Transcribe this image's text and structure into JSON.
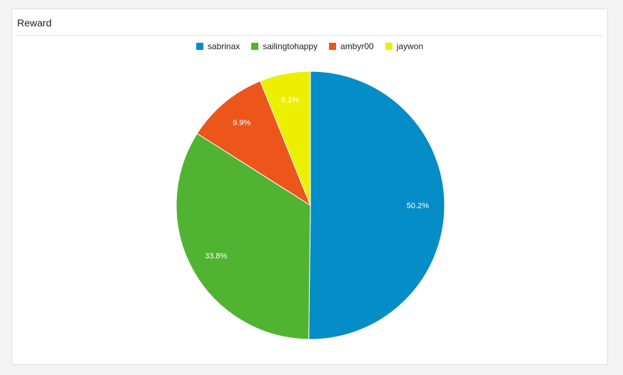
{
  "chart_data": {
    "type": "pie",
    "title": "Reward",
    "legend_position": "top",
    "slices": [
      {
        "label": "sabrinax",
        "value": 50.2,
        "value_label": "50.2%",
        "color": "#058dc7"
      },
      {
        "label": "sailingtohappy",
        "value": 33.8,
        "value_label": "33.8%",
        "color": "#50b432"
      },
      {
        "label": "ambyr00",
        "value": 9.9,
        "value_label": "9.9%",
        "color": "#ed561b"
      },
      {
        "label": "jaywon",
        "value": 6.1,
        "value_label": "6.1%",
        "color": "#edef00"
      }
    ]
  }
}
